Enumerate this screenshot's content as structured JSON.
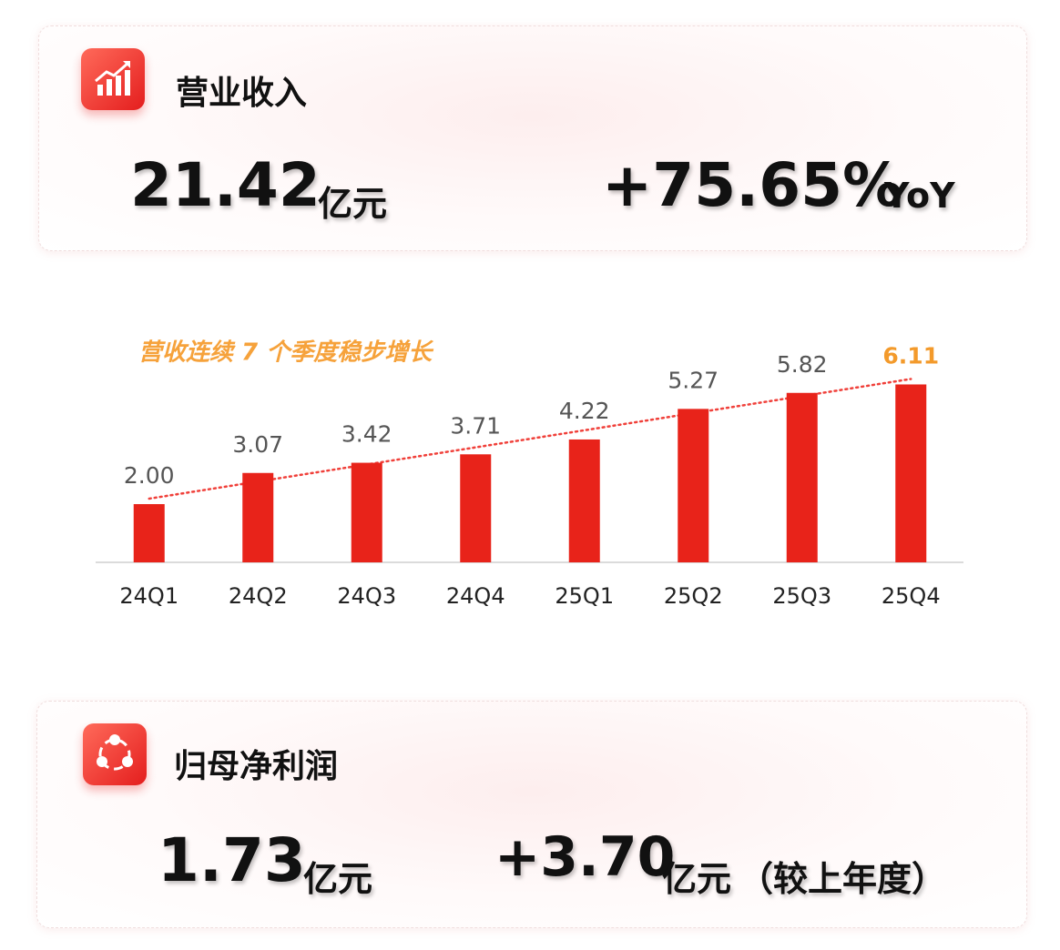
{
  "revenue_card": {
    "title": "营业收入",
    "value": "21.42",
    "unit": "亿元",
    "growth": "+75.65%",
    "growth_unit": "YoY"
  },
  "chart_data": {
    "type": "bar",
    "annotation": "营收连续 7 个季度稳步增长",
    "categories": [
      "24Q1",
      "24Q2",
      "24Q3",
      "24Q4",
      "25Q1",
      "25Q2",
      "25Q3",
      "25Q4"
    ],
    "values": [
      2.0,
      3.07,
      3.42,
      3.71,
      4.22,
      5.27,
      5.82,
      6.11
    ],
    "value_labels": [
      "2.00",
      "3.07",
      "3.42",
      "3.71",
      "4.22",
      "5.27",
      "5.82",
      "6.11"
    ],
    "color": "#e8231a",
    "highlight_color": "#f39a2b",
    "ylim": [
      0,
      7
    ],
    "trendline": true
  },
  "profit_card": {
    "title": "归母净利润",
    "value": "1.73",
    "unit": "亿元",
    "change": "+3.70",
    "change_unit": "亿元",
    "note": "（较上年度）"
  }
}
